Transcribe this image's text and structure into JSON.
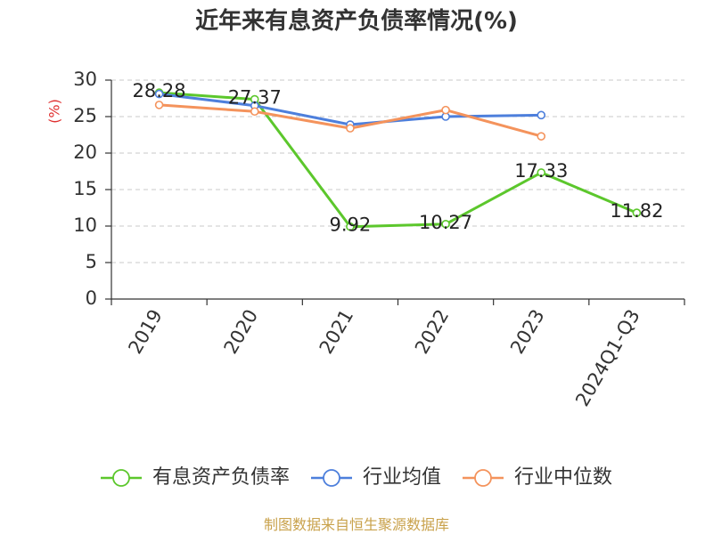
{
  "footer": "制图数据来自恒生聚源数据库",
  "colors": {
    "title": "#333333",
    "ylabel": "#e03131",
    "footer": "#c9a24c"
  },
  "chart_data": {
    "type": "line",
    "title": "近年来有息资产负债率情况(%)",
    "xlabel": "",
    "ylabel": "(%)",
    "categories": [
      "2019",
      "2020",
      "2021",
      "2022",
      "2023",
      "2024Q1-Q3"
    ],
    "ylim": [
      0,
      30
    ],
    "yticks": [
      0,
      5,
      10,
      15,
      20,
      25,
      30
    ],
    "grid": true,
    "legend": "bottom",
    "series": [
      {
        "name": "有息资产负债率",
        "color": "#5cc72c",
        "show_labels": true,
        "values": [
          28.28,
          27.37,
          9.92,
          10.27,
          17.33,
          11.82
        ]
      },
      {
        "name": "行业均值",
        "color": "#4d7fdc",
        "show_labels": false,
        "values": [
          28.1,
          26.5,
          23.9,
          25.0,
          25.2,
          null
        ]
      },
      {
        "name": "行业中位数",
        "color": "#f4935c",
        "show_labels": false,
        "values": [
          26.6,
          25.7,
          23.4,
          25.9,
          22.3,
          null
        ]
      }
    ]
  }
}
